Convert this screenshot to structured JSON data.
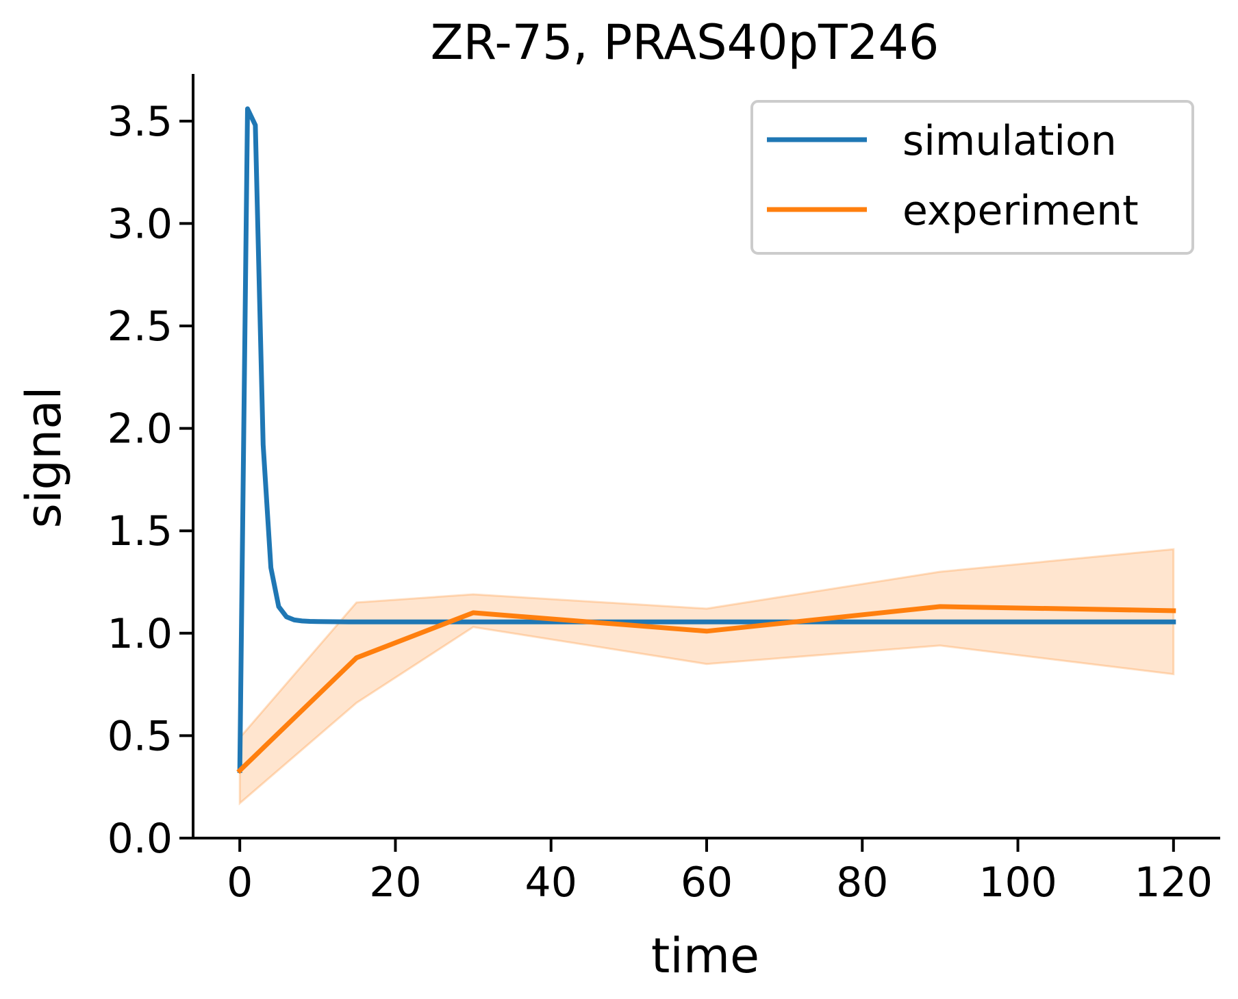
{
  "chart_data": {
    "type": "line",
    "title": "ZR-75, PRAS40pT246",
    "xlabel": "time",
    "ylabel": "signal",
    "xlim": [
      -6,
      126
    ],
    "ylim": [
      0,
      3.73
    ],
    "x_ticks": [
      0,
      20,
      40,
      60,
      80,
      100,
      120
    ],
    "y_ticks": [
      0.0,
      0.5,
      1.0,
      1.5,
      2.0,
      2.5,
      3.0,
      3.5
    ],
    "x_tick_labels": [
      "0",
      "20",
      "40",
      "60",
      "80",
      "100",
      "120"
    ],
    "y_tick_labels": [
      "0.0",
      "0.5",
      "1.0",
      "1.5",
      "2.0",
      "2.5",
      "3.0",
      "3.5"
    ],
    "grid": false,
    "legend_position": "top-right",
    "series": [
      {
        "name": "simulation",
        "color": "#1f77b4",
        "x": [
          0,
          1,
          2,
          3,
          4,
          5,
          6,
          7,
          8,
          9,
          10,
          15,
          20,
          30,
          60,
          90,
          120
        ],
        "y": [
          0.33,
          3.56,
          3.48,
          1.92,
          1.32,
          1.13,
          1.08,
          1.065,
          1.06,
          1.058,
          1.057,
          1.055,
          1.055,
          1.055,
          1.055,
          1.055,
          1.055
        ]
      },
      {
        "name": "experiment",
        "color": "#ff7f0e",
        "x": [
          0,
          15,
          30,
          60,
          90,
          120
        ],
        "y": [
          0.33,
          0.88,
          1.1,
          1.01,
          1.13,
          1.11
        ],
        "lower": [
          0.17,
          0.66,
          1.03,
          0.85,
          0.94,
          0.8
        ],
        "upper": [
          0.49,
          1.15,
          1.19,
          1.12,
          1.3,
          1.41
        ]
      }
    ]
  }
}
